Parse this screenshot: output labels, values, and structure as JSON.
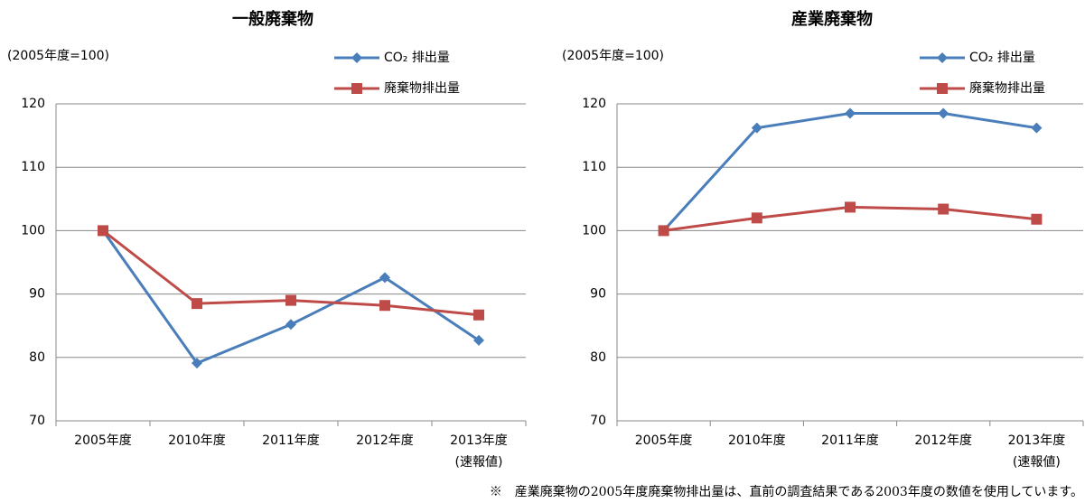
{
  "chart_data": [
    {
      "type": "line",
      "title": "一般廃棄物",
      "subtitle": "(2005年度=100)",
      "categories": [
        "2005年度",
        "2010年度",
        "2011年度",
        "2012年度",
        "2013年度\n(速報値)"
      ],
      "series": [
        {
          "name": "CO₂ 排出量",
          "color": "#4a7ebb",
          "marker": "diamond",
          "values": [
            100,
            79.1,
            85.2,
            92.6,
            82.7
          ]
        },
        {
          "name": "廃棄物排出量",
          "color": "#be4b48",
          "marker": "square",
          "values": [
            100,
            88.5,
            89.0,
            88.2,
            86.7
          ]
        }
      ],
      "ylim": [
        70,
        120
      ],
      "yticks": [
        70,
        80,
        90,
        100,
        110,
        120
      ],
      "grid": true
    },
    {
      "type": "line",
      "title": "産業廃棄物",
      "subtitle": "(2005年度=100)",
      "categories": [
        "2005年度",
        "2010年度",
        "2011年度",
        "2012年度",
        "2013年度\n(速報値)"
      ],
      "series": [
        {
          "name": "CO₂ 排出量",
          "color": "#4a7ebb",
          "marker": "diamond",
          "values": [
            100,
            116.2,
            118.5,
            118.5,
            116.2
          ]
        },
        {
          "name": "廃棄物排出量",
          "color": "#be4b48",
          "marker": "square",
          "values": [
            100,
            102.0,
            103.7,
            103.4,
            101.8
          ]
        }
      ],
      "ylim": [
        70,
        120
      ],
      "yticks": [
        70,
        80,
        90,
        100,
        110,
        120
      ],
      "grid": true
    }
  ],
  "footnote": "※　産業廃棄物の2005年度廃棄物排出量は、直前の調査結果である2003年度の数値を使用しています。"
}
